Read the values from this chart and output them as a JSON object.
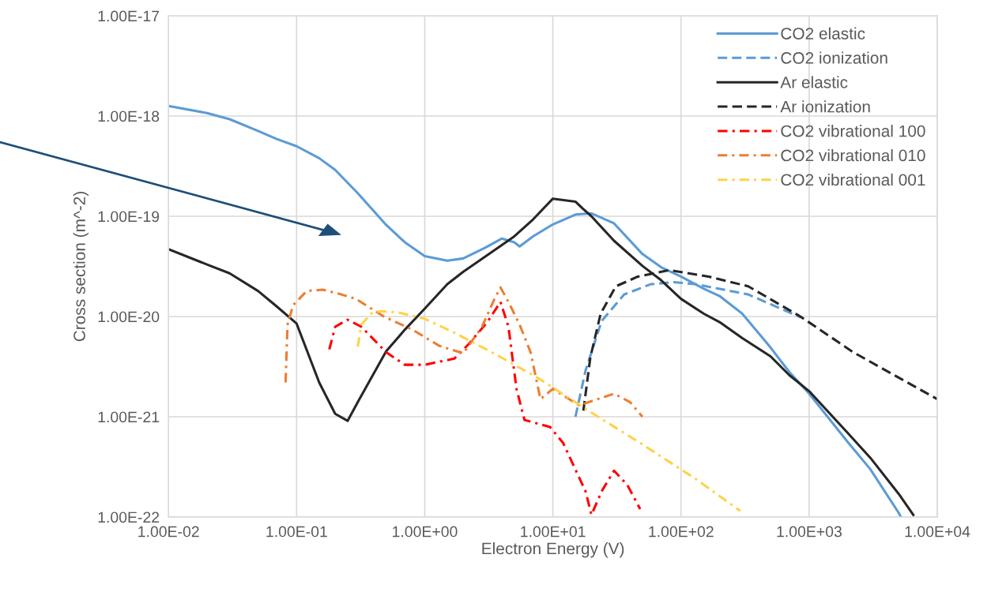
{
  "chart_data": {
    "type": "line",
    "xlabel": "Electron Energy (V)",
    "ylabel": "Cross section (m^-2)",
    "log": "xy",
    "xlim": [
      0.01,
      10000
    ],
    "ylim": [
      1e-22,
      1e-17
    ],
    "xticks": [
      {
        "value": 0.01,
        "label": "1.00E-02"
      },
      {
        "value": 0.1,
        "label": "1.00E-01"
      },
      {
        "value": 1,
        "label": "1.00E+00"
      },
      {
        "value": 10,
        "label": "1.00E+01"
      },
      {
        "value": 100,
        "label": "1.00E+02"
      },
      {
        "value": 1000,
        "label": "1.00E+03"
      },
      {
        "value": 10000,
        "label": "1.00E+04"
      }
    ],
    "yticks": [
      {
        "value": 1e-22,
        "label": "1.00E-22"
      },
      {
        "value": 1e-21,
        "label": "1.00E-21"
      },
      {
        "value": 1e-20,
        "label": "1.00E-20"
      },
      {
        "value": 1e-19,
        "label": "1.00E-19"
      },
      {
        "value": 1e-18,
        "label": "1.00E-18"
      },
      {
        "value": 1e-17,
        "label": "1.00E-17"
      }
    ],
    "grid": true,
    "legend": "top right",
    "marker": "none",
    "series": [
      {
        "name": "CO2 elastic",
        "color": "#5b9bd5",
        "line_style": "solid",
        "x": [
          0.01,
          0.02,
          0.03,
          0.05,
          0.07,
          0.1,
          0.15,
          0.2,
          0.3,
          0.5,
          0.7,
          1,
          1.5,
          2,
          3,
          4,
          5,
          5.5,
          7,
          10,
          15,
          20,
          30,
          50,
          70,
          100,
          150,
          200,
          300,
          500,
          700,
          1000,
          2000,
          3000,
          5000,
          5200
        ],
        "values": [
          1.26e-18,
          1.07e-18,
          9.3e-19,
          7.1e-19,
          5.9e-19,
          5e-19,
          3.8e-19,
          2.9e-19,
          1.7e-19,
          8.2e-20,
          5.5e-20,
          4e-20,
          3.6e-20,
          3.8e-20,
          4.9e-20,
          6e-20,
          5.5e-20,
          5e-20,
          6.3e-20,
          8.3e-20,
          1.04e-19,
          1.07e-19,
          8.5e-20,
          4.2e-20,
          3.1e-20,
          2.5e-20,
          1.9e-20,
          1.6e-20,
          1.07e-20,
          4.9e-21,
          2.8e-21,
          1.7e-21,
          5.6e-22,
          3e-22,
          1.1e-22,
          1e-22
        ]
      },
      {
        "name": "CO2 ionization",
        "color": "#5b9bd5",
        "line_style": "dashed",
        "x": [
          15,
          18,
          24,
          36,
          58,
          88,
          130,
          335,
          860
        ],
        "values": [
          1e-21,
          2.9e-21,
          9e-21,
          1.66e-20,
          2.1e-20,
          2.2e-20,
          2.1e-20,
          1.66e-20,
          9.8e-21
        ]
      },
      {
        "name": "Ar elastic",
        "color": "#262626",
        "line_style": "solid",
        "x": [
          0.01,
          0.02,
          0.03,
          0.05,
          0.07,
          0.1,
          0.15,
          0.2,
          0.25,
          0.3,
          0.5,
          0.7,
          1,
          1.5,
          2,
          3,
          5,
          7,
          10,
          15,
          17,
          20,
          30,
          50,
          70,
          100,
          150,
          200,
          300,
          500,
          700,
          1000,
          2000,
          3000,
          5000,
          6500
        ],
        "values": [
          4.7e-20,
          3.3e-20,
          2.7e-20,
          1.8e-20,
          1.26e-20,
          8.5e-21,
          2.2e-21,
          1.07e-21,
          9.1e-22,
          1.4e-21,
          4.5e-21,
          7.4e-21,
          1.2e-20,
          2.1e-20,
          2.8e-20,
          4e-20,
          6.3e-20,
          9.3e-20,
          1.5e-19,
          1.4e-19,
          1.2e-19,
          1e-19,
          5.7e-20,
          3.2e-20,
          2.3e-20,
          1.5e-20,
          1.07e-20,
          8.8e-21,
          6.1e-21,
          4e-21,
          2.6e-21,
          1.8e-21,
          6.9e-22,
          3.9e-22,
          1.7e-22,
          1.05e-22
        ]
      },
      {
        "name": "Ar ionization",
        "color": "#262626",
        "line_style": "dashed",
        "x": [
          17.3,
          19.6,
          23.6,
          31,
          46,
          81,
          165,
          335,
          855,
          2210,
          10000
        ],
        "values": [
          1.15e-21,
          3.9e-21,
          1.07e-20,
          2e-20,
          2.5e-20,
          2.9e-20,
          2.5e-20,
          2e-20,
          1e-20,
          4.4e-21,
          1.5e-21
        ]
      },
      {
        "name": "CO2 vibrational 100",
        "color": "#ff0000",
        "line_style": "dashdot",
        "x": [
          0.18,
          0.2,
          0.25,
          0.32,
          0.5,
          0.7,
          1,
          1.7,
          2.2,
          3.1,
          3.9,
          4.5,
          5.2,
          6,
          9.5,
          12,
          18,
          20,
          24,
          30,
          38,
          48
        ],
        "values": [
          4.7e-21,
          7.9e-21,
          9.3e-21,
          7.9e-21,
          4.4e-21,
          3.3e-21,
          3.3e-21,
          3.8e-21,
          5.3e-21,
          8.9e-21,
          1.4e-20,
          7.9e-21,
          1.9e-21,
          9.3e-22,
          7.9e-22,
          5.5e-22,
          1.8e-22,
          1.05e-22,
          1.8e-22,
          2.9e-22,
          2.1e-22,
          1.2e-22
        ]
      },
      {
        "name": "CO2 vibrational 010",
        "color": "#ed7d31",
        "line_style": "dashdot",
        "x": [
          0.082,
          0.085,
          0.094,
          0.12,
          0.16,
          0.21,
          0.29,
          0.48,
          0.8,
          1.3,
          2,
          2.8,
          3.5,
          3.9,
          4.5,
          5.5,
          6.7,
          8,
          10,
          16,
          30,
          40,
          50
        ],
        "values": [
          2.2e-21,
          8.3e-21,
          1.3e-20,
          1.8e-20,
          1.85e-20,
          1.7e-20,
          1.5e-20,
          1e-20,
          7.4e-21,
          5.1e-21,
          4.3e-21,
          7.9e-21,
          1.5e-20,
          1.95e-20,
          1.4e-20,
          8.3e-21,
          4.4e-21,
          1.5e-21,
          1.9e-21,
          1.3e-21,
          1.7e-21,
          1.4e-21,
          1e-21
        ]
      },
      {
        "name": "CO2 vibrational 001",
        "color": "#ffd246",
        "line_style": "dashdot",
        "x": [
          0.3,
          0.32,
          0.39,
          0.45,
          0.62,
          1,
          1.7,
          3.7,
          7.8,
          20,
          50,
          130,
          290
        ],
        "values": [
          5e-21,
          8.3e-21,
          1.1e-20,
          1.13e-20,
          1.1e-20,
          9.5e-21,
          6.9e-21,
          4.1e-21,
          2.4e-21,
          1.1e-21,
          5.3e-22,
          2.4e-22,
          1.15e-22
        ]
      }
    ]
  }
}
